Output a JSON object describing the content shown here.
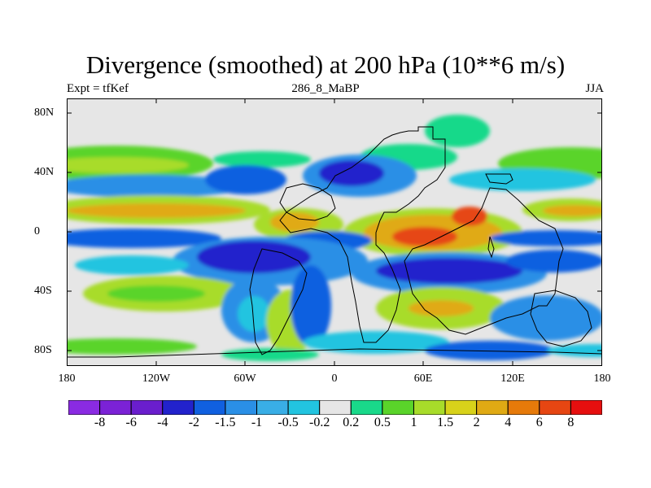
{
  "header": {
    "title": "Divergence (smoothed) at 200 hPa (10**6 m/s)",
    "experiment": "Expt = tfKef",
    "run": "286_8_MaBP",
    "season": "JJA"
  },
  "axes": {
    "lat_labels": [
      "80N",
      "40N",
      "0",
      "40S",
      "80S"
    ],
    "lon_labels": [
      "180",
      "120W",
      "60W",
      "0",
      "60E",
      "120E",
      "180"
    ]
  },
  "colorbar": {
    "colors": [
      "#8a2be2",
      "#7b22d6",
      "#6a1ecd",
      "#2222cc",
      "#1060e0",
      "#2a8fe6",
      "#39aee6",
      "#22c4e0",
      "#e6e6e6",
      "#19d98a",
      "#5ad42a",
      "#a8dc2a",
      "#d8d21a",
      "#e0aa14",
      "#e67a0a",
      "#e64612",
      "#e60f0f"
    ],
    "labels": [
      "-8",
      "-6",
      "-4",
      "-2",
      "-1.5",
      "-1",
      "-0.5",
      "-0.2",
      "0.2",
      "0.5",
      "1",
      "1.5",
      "2",
      "4",
      "6",
      "8"
    ]
  },
  "map": {
    "background": "#e6e6e6",
    "legend_colors": {
      "strong_neg": "#2222cc",
      "neg": "#1060e0",
      "mid_neg": "#2a8fe6",
      "weak_neg": "#22c4e0",
      "weak_pos": "#19d98a",
      "pos": "#5ad42a",
      "mid_pos": "#a8dc2a",
      "yellow": "#d8d21a",
      "orange": "#e67a0a",
      "red": "#e64612"
    }
  }
}
